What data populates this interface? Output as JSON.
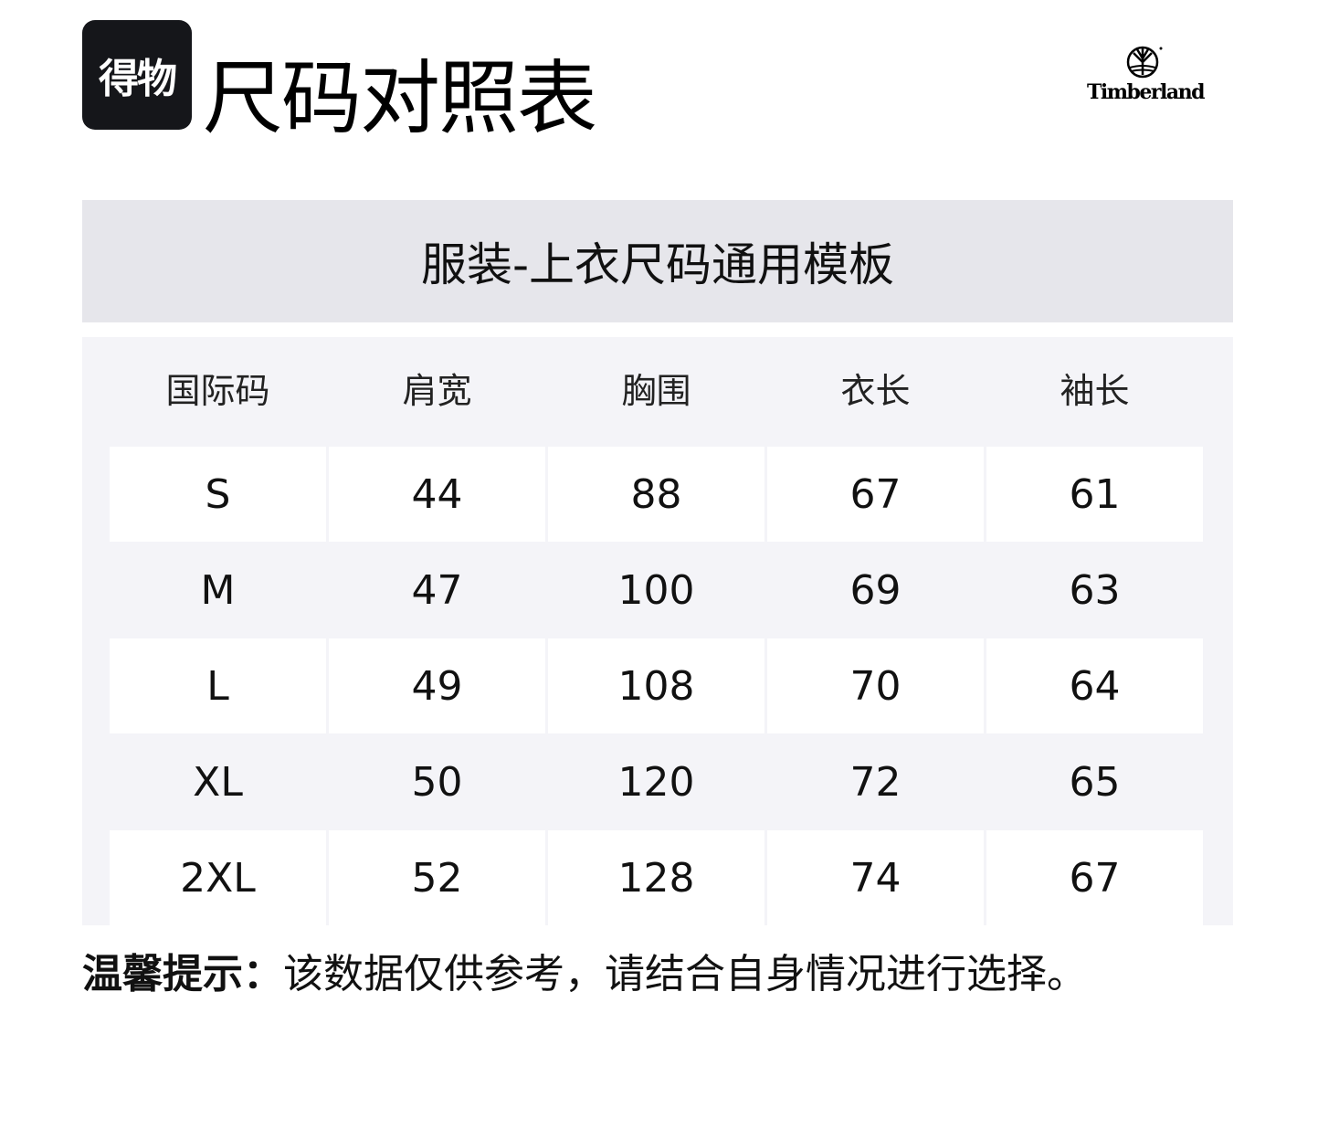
{
  "logo": {
    "text": "得物"
  },
  "title": "尺码对照表",
  "brand": {
    "name": "Timberland"
  },
  "template_title": "服装-上衣尺码通用模板",
  "table": {
    "headers": [
      "国际码",
      "肩宽",
      "胸围",
      "衣长",
      "袖长"
    ],
    "rows": [
      [
        "S",
        "44",
        "88",
        "67",
        "61"
      ],
      [
        "M",
        "47",
        "100",
        "69",
        "63"
      ],
      [
        "L",
        "49",
        "108",
        "70",
        "64"
      ],
      [
        "XL",
        "50",
        "120",
        "72",
        "65"
      ],
      [
        "2XL",
        "52",
        "128",
        "74",
        "67"
      ]
    ]
  },
  "tip": {
    "label": "温馨提示：",
    "text": "该数据仅供参考，请结合自身情况进行选择。"
  }
}
